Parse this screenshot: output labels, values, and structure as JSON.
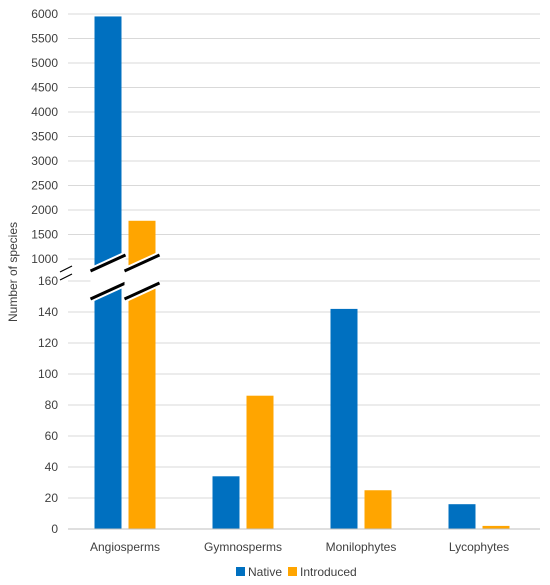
{
  "chart_data": {
    "type": "bar",
    "categories": [
      "Angiosperms",
      "Gymnosperms",
      "Monilophytes",
      "Lycophytes"
    ],
    "series": [
      {
        "name": "Native",
        "color": "#0070C0",
        "values": [
          5950,
          34,
          142,
          16
        ]
      },
      {
        "name": "Introduced",
        "color": "#FFA500",
        "values": [
          1780,
          86,
          25,
          2
        ]
      }
    ],
    "ylabel": "Number of species",
    "axis_break": true,
    "lower_segment": {
      "ylim": [
        0,
        160
      ],
      "ticks": [
        "0",
        "20",
        "40",
        "60",
        "80",
        "100",
        "120",
        "140",
        "160"
      ]
    },
    "upper_segment": {
      "ylim": [
        1000,
        6000
      ],
      "ticks": [
        "1000",
        "1500",
        "2000",
        "2500",
        "3000",
        "3500",
        "4000",
        "4500",
        "5000",
        "5500",
        "6000"
      ]
    },
    "grid": true,
    "legend_position": "bottom"
  }
}
